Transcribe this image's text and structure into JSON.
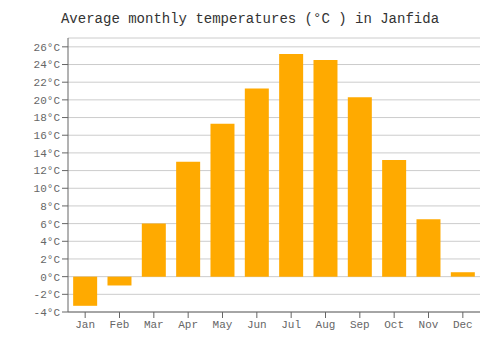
{
  "chart_data": {
    "type": "bar",
    "title": "Average monthly temperatures (°C ) in Janfida",
    "categories": [
      "Jan",
      "Feb",
      "Mar",
      "Apr",
      "May",
      "Jun",
      "Jul",
      "Aug",
      "Sep",
      "Oct",
      "Nov",
      "Dec"
    ],
    "values": [
      -3.3,
      -1.0,
      6.0,
      13.0,
      17.3,
      21.3,
      25.2,
      24.5,
      20.3,
      13.2,
      6.5,
      0.5
    ],
    "color": "#FFAA00",
    "ylim": [
      -4,
      27
    ],
    "yticks": [
      {
        "value": -4,
        "label": "-4°C"
      },
      {
        "value": -2,
        "label": "-2°C"
      },
      {
        "value": 0,
        "label": "0°C"
      },
      {
        "value": 2,
        "label": "2°C"
      },
      {
        "value": 4,
        "label": "4°C"
      },
      {
        "value": 6,
        "label": "6°C"
      },
      {
        "value": 8,
        "label": "8°C"
      },
      {
        "value": 10,
        "label": "10°C"
      },
      {
        "value": 12,
        "label": "12°C"
      },
      {
        "value": 14,
        "label": "14°C"
      },
      {
        "value": 16,
        "label": "16°C"
      },
      {
        "value": 18,
        "label": "18°C"
      },
      {
        "value": 20,
        "label": "20°C"
      },
      {
        "value": 22,
        "label": "22°C"
      },
      {
        "value": 24,
        "label": "24°C"
      },
      {
        "value": 26,
        "label": "26°C"
      }
    ],
    "grid": true
  }
}
